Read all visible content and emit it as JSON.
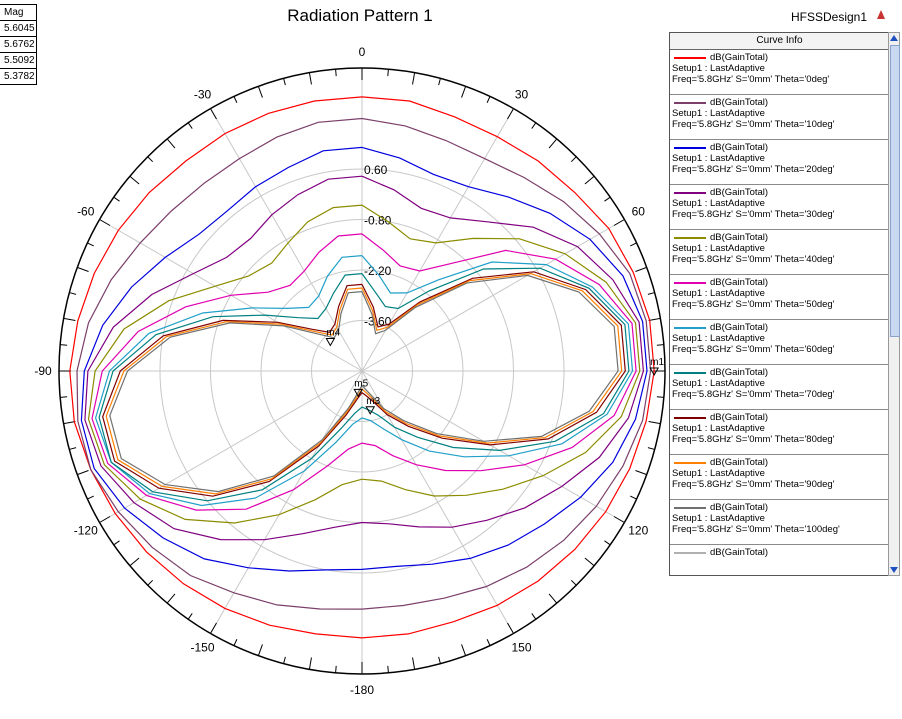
{
  "chart_data": {
    "type": "polar-line",
    "title": "Radiation Pattern 1",
    "design_name": "HFSSDesign1",
    "radial_tick_labels": [
      "0.60",
      "-0.80",
      "-2.20",
      "-3.60"
    ],
    "angle_labels": [
      "0",
      "30",
      "60",
      "90",
      "120",
      "150",
      "-180",
      "-150",
      "-120",
      "-90",
      "-60",
      "-30"
    ],
    "angle_label_values": [
      0,
      30,
      60,
      90,
      120,
      150,
      180,
      210,
      240,
      270,
      300,
      330
    ],
    "radial_ticks": [
      0.6,
      -0.8,
      -2.2,
      -3.6
    ],
    "marker_table": {
      "header": "Mag",
      "values": [
        "5.6045",
        "5.6762",
        "5.5092",
        "5.3782"
      ]
    },
    "markers": [
      {
        "label": "m4",
        "angle_deg": -47,
        "value": -3.8
      },
      {
        "label": "m5",
        "angle_deg": -170,
        "value": -4.4
      },
      {
        "label": "m3",
        "angle_deg": 168,
        "value": -3.9
      },
      {
        "label": "m1",
        "angle_deg": 90,
        "value": 3.1
      }
    ],
    "legend_title": "Curve Info",
    "legend_line1": "dB(GainTotal)",
    "legend_line2": "Setup1 : LastAdaptive",
    "legend_entries": [
      {
        "freq_line": "Freq='5.8GHz' S='0mm' Theta='0deg'",
        "color": "#ff0000"
      },
      {
        "freq_line": "Freq='5.8GHz' S='0mm' Theta='10deg'",
        "color": "#7b3f6a"
      },
      {
        "freq_line": "Freq='5.8GHz' S='0mm' Theta='20deg'",
        "color": "#0000dd"
      },
      {
        "freq_line": "Freq='5.8GHz' S='0mm' Theta='30deg'",
        "color": "#800080"
      },
      {
        "freq_line": "Freq='5.8GHz' S='0mm' Theta='40deg'",
        "color": "#8c8c00"
      },
      {
        "freq_line": "Freq='5.8GHz' S='0mm' Theta='50deg'",
        "color": "#e000b0"
      },
      {
        "freq_line": "Freq='5.8GHz' S='0mm' Theta='60deg'",
        "color": "#20a0c8"
      },
      {
        "freq_line": "Freq='5.8GHz' S='0mm' Theta='70deg'",
        "color": "#008080"
      },
      {
        "freq_line": "Freq='5.8GHz' S='0mm' Theta='80deg'",
        "color": "#800000"
      },
      {
        "freq_line": "Freq='5.8GHz' S='0mm' Theta='90deg'",
        "color": "#ff8000"
      },
      {
        "freq_line": "Freq='5.8GHz' S='0mm' Theta='100deg'",
        "color": "#707070"
      },
      {
        "freq_line": "",
        "color": "#b0b0b0"
      }
    ],
    "series": [
      {
        "color": "#ff0000",
        "values": [
          2.6,
          2.6,
          2.5,
          2.5,
          2.6,
          2.7,
          2.9,
          3.0,
          3.1,
          3.1,
          3.0,
          2.9,
          2.8,
          2.7,
          2.6,
          2.5,
          2.4,
          2.4,
          2.4,
          2.4,
          2.5,
          2.6,
          2.7,
          2.8,
          2.9,
          3.0,
          3.1,
          3.1,
          3.0,
          2.9,
          2.8,
          2.7,
          2.6,
          2.6,
          2.6,
          2.6
        ]
      },
      {
        "color": "#7b3f6a",
        "values": [
          2.0,
          1.9,
          1.8,
          1.8,
          2.0,
          2.3,
          2.6,
          2.9,
          3.0,
          3.0,
          2.9,
          2.7,
          2.5,
          2.3,
          2.1,
          1.9,
          1.7,
          1.6,
          1.6,
          1.7,
          1.9,
          2.1,
          2.4,
          2.6,
          2.8,
          3.0,
          3.0,
          2.9,
          2.7,
          2.4,
          2.1,
          1.9,
          1.8,
          1.8,
          1.9,
          2.0
        ]
      },
      {
        "color": "#0000dd",
        "values": [
          1.2,
          1.0,
          0.8,
          0.9,
          1.3,
          1.8,
          2.3,
          2.7,
          2.9,
          2.9,
          2.7,
          2.4,
          2.0,
          1.6,
          1.3,
          1.0,
          0.7,
          0.5,
          0.5,
          0.6,
          0.9,
          1.3,
          1.8,
          2.2,
          2.6,
          2.9,
          2.9,
          2.7,
          2.3,
          1.8,
          1.3,
          0.9,
          0.8,
          0.9,
          1.0,
          1.2
        ]
      },
      {
        "color": "#800080",
        "values": [
          0.4,
          0.1,
          -0.2,
          -0.1,
          0.4,
          1.2,
          1.9,
          2.4,
          2.8,
          2.8,
          2.5,
          2.0,
          1.4,
          0.9,
          0.4,
          0.0,
          -0.4,
          -0.7,
          -0.8,
          -0.6,
          -0.2,
          0.4,
          1.1,
          1.8,
          2.3,
          2.7,
          2.8,
          2.6,
          2.0,
          1.2,
          0.4,
          -0.1,
          -0.2,
          0.0,
          0.2,
          0.4
        ]
      },
      {
        "color": "#8c8c00",
        "values": [
          -0.4,
          -0.8,
          -1.1,
          -0.9,
          -0.2,
          0.7,
          1.5,
          2.2,
          2.7,
          2.7,
          2.3,
          1.6,
          0.8,
          0.1,
          -0.5,
          -1.0,
          -1.5,
          -1.9,
          -2.0,
          -1.8,
          -1.2,
          -0.4,
          0.5,
          1.4,
          2.1,
          2.6,
          2.7,
          2.4,
          1.7,
          0.7,
          -0.3,
          -0.9,
          -1.1,
          -0.9,
          -0.6,
          -0.4
        ]
      },
      {
        "color": "#e000b0",
        "values": [
          -1.2,
          -1.6,
          -1.9,
          -1.8,
          -1.1,
          0.2,
          1.2,
          2.0,
          2.6,
          2.6,
          2.1,
          1.2,
          0.2,
          -0.7,
          -1.4,
          -2.0,
          -2.5,
          -2.9,
          -3.0,
          -2.8,
          -2.2,
          -1.2,
          0.0,
          1.0,
          1.9,
          2.5,
          2.6,
          2.2,
          1.3,
          0.2,
          -0.8,
          -1.6,
          -1.9,
          -1.8,
          -1.5,
          -1.2
        ]
      },
      {
        "color": "#20a0c8",
        "values": [
          -1.8,
          -2.3,
          -2.7,
          -2.5,
          -1.7,
          -0.3,
          0.9,
          1.8,
          2.5,
          2.5,
          1.9,
          0.9,
          -0.3,
          -1.3,
          -2.1,
          -2.8,
          -3.3,
          -3.6,
          -3.7,
          -3.5,
          -2.9,
          -1.8,
          -0.4,
          0.8,
          1.8,
          2.4,
          2.5,
          2.0,
          1.0,
          -0.3,
          -1.5,
          -2.3,
          -2.7,
          -2.6,
          -2.2,
          -1.8
        ]
      },
      {
        "color": "#008080",
        "values": [
          -2.3,
          -2.8,
          -3.1,
          -3.0,
          -2.1,
          -0.6,
          0.7,
          1.7,
          2.4,
          2.4,
          1.8,
          0.7,
          -0.6,
          -1.7,
          -2.6,
          -3.2,
          -3.7,
          -3.9,
          -4.0,
          -3.8,
          -3.3,
          -2.2,
          -0.7,
          0.6,
          1.7,
          2.4,
          2.4,
          1.9,
          0.8,
          -0.6,
          -1.9,
          -2.7,
          -3.1,
          -3.0,
          -2.7,
          -2.3
        ]
      },
      {
        "color": "#800000",
        "values": [
          -2.6,
          -3.2,
          -3.7,
          -3.5,
          -2.5,
          -1.0,
          0.5,
          1.6,
          2.3,
          2.3,
          1.6,
          0.5,
          -0.9,
          -2.1,
          -3.0,
          -3.6,
          -4.1,
          -4.3,
          -4.4,
          -4.2,
          -3.7,
          -2.6,
          -1.0,
          0.4,
          1.5,
          2.3,
          2.3,
          1.7,
          0.6,
          -0.9,
          -2.3,
          -3.2,
          -3.6,
          -3.5,
          -3.1,
          -2.6
        ]
      },
      {
        "color": "#ff8000",
        "values": [
          -2.7,
          -3.3,
          -3.8,
          -3.6,
          -2.6,
          -1.1,
          0.4,
          1.5,
          2.2,
          2.2,
          1.5,
          0.4,
          -1.0,
          -2.2,
          -3.1,
          -3.7,
          -4.2,
          -4.4,
          -4.5,
          -4.3,
          -3.8,
          -2.7,
          -1.1,
          0.3,
          1.4,
          2.2,
          2.2,
          1.6,
          0.5,
          -1.0,
          -2.4,
          -3.3,
          -3.7,
          -3.6,
          -3.2,
          -2.7
        ]
      },
      {
        "color": "#707070",
        "values": [
          -2.8,
          -3.4,
          -3.9,
          -3.7,
          -2.7,
          -1.2,
          0.3,
          1.4,
          2.1,
          2.1,
          1.4,
          0.3,
          -1.1,
          -2.3,
          -3.2,
          -3.8,
          -4.3,
          -4.5,
          -4.6,
          -4.4,
          -3.9,
          -2.8,
          -1.2,
          0.2,
          1.3,
          2.1,
          2.1,
          1.5,
          0.4,
          -1.1,
          -2.5,
          -3.4,
          -3.8,
          -3.7,
          -3.3,
          -2.8
        ]
      }
    ]
  }
}
